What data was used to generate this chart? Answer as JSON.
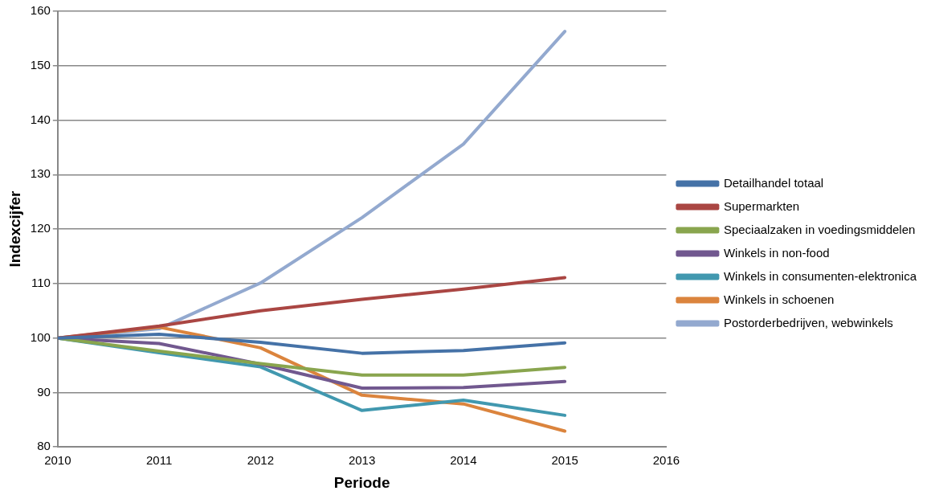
{
  "chart_data": {
    "type": "line",
    "xlabel": "Periode",
    "ylabel": "Indexcijfer",
    "x": [
      2010,
      2011,
      2012,
      2013,
      2014,
      2015
    ],
    "xlim": [
      2010,
      2016
    ],
    "xticks": [
      2010,
      2011,
      2012,
      2013,
      2014,
      2015,
      2016
    ],
    "ylim": [
      80,
      160
    ],
    "yticks": [
      80,
      90,
      100,
      110,
      120,
      130,
      140,
      150,
      160
    ],
    "grid": "y",
    "legend": "right",
    "marker": "none",
    "line_style": "solid",
    "series": [
      {
        "name": "Detailhandel totaal",
        "color": "#4572a7",
        "values": [
          100,
          100.7,
          99.2,
          97.2,
          97.7,
          99.1
        ]
      },
      {
        "name": "Supermarkten",
        "color": "#aa4643",
        "values": [
          100,
          102.2,
          105,
          107.1,
          109,
          111.1
        ]
      },
      {
        "name": "Speciaalzaken in voedingsmiddelen",
        "color": "#89a54e",
        "values": [
          100,
          97.6,
          95.3,
          93.2,
          93.2,
          94.6
        ]
      },
      {
        "name": "Winkels in non-food",
        "color": "#71588f",
        "values": [
          100,
          99,
          95.2,
          90.8,
          90.9,
          92
        ]
      },
      {
        "name": "Winkels in consumenten-elektronica",
        "color": "#4198af",
        "values": [
          100,
          97.3,
          94.7,
          86.7,
          88.6,
          85.8
        ]
      },
      {
        "name": "Winkels in schoenen",
        "color": "#db843d",
        "values": [
          100,
          102,
          98.2,
          89.5,
          87.9,
          82.9
        ]
      },
      {
        "name": "Postorderbedrijven, webwinkels",
        "color": "#93a9cf",
        "values": [
          100,
          101.7,
          110.1,
          122.1,
          135.6,
          156.3
        ]
      }
    ]
  }
}
